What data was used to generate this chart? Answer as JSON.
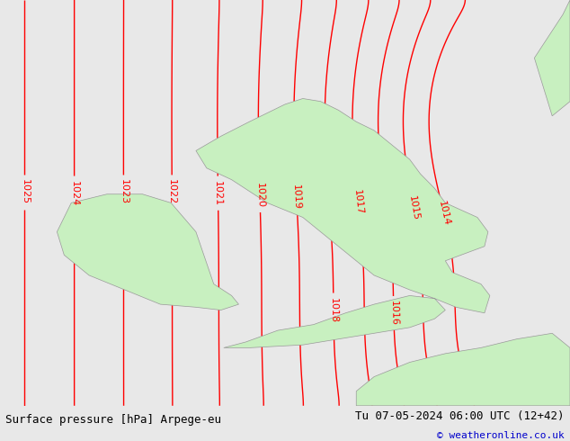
{
  "title_left": "Surface pressure [hPa] Arpege-eu",
  "title_right": "Tu 07-05-2024 06:00 UTC (12+42)",
  "copyright": "© weatheronline.co.uk",
  "bg_color": "#e8e8e8",
  "land_color": "#c8f0c0",
  "ocean_color": "#e8e8e8",
  "coast_color": "#999999",
  "contour_color": "#ff0000",
  "contour_linewidth": 1.0,
  "label_fontsize": 8,
  "text_color_left": "#000000",
  "text_color_right": "#000000",
  "copyright_color": "#0000cc",
  "lon_min": -12.0,
  "lon_max": 4.0,
  "lat_min": 48.0,
  "lat_max": 62.0,
  "pressure_min": 1014,
  "pressure_max": 1026
}
